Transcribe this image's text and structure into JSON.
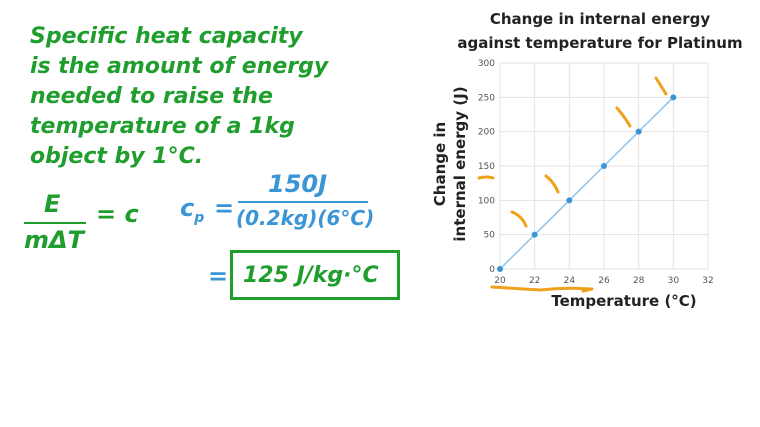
{
  "definition": {
    "lines": [
      "Specific heat capacity",
      "is the amount of energy",
      "needed to raise the",
      "temperature of a 1kg",
      "object by 1°C."
    ]
  },
  "formula": {
    "numerator": "E",
    "denominator": "mΔT",
    "rhs": "= c"
  },
  "calculation": {
    "lhs": "c",
    "lhs_sub": "p",
    "equals": "=",
    "numerator": "150J",
    "denominator": "(0.2kg)(6°C)",
    "result_equals": "=",
    "result": "125 J/kg·°C"
  },
  "colors": {
    "green": "#1f9e2e",
    "blue": "#3a95d6",
    "orange": "#f0a11c",
    "line": "#8fc4ec"
  },
  "chart_data": {
    "type": "line",
    "title": [
      "Change in internal energy",
      "against temperature for Platinum"
    ],
    "xlabel": "Temperature (°C)",
    "ylabel": [
      "Change in",
      "internal energy (J)"
    ],
    "xlim": [
      20,
      32
    ],
    "ylim": [
      0,
      300
    ],
    "xticks": [
      20,
      22,
      24,
      26,
      28,
      30,
      32
    ],
    "yticks": [
      0,
      50,
      100,
      150,
      200,
      250,
      300
    ],
    "grid": true,
    "series": [
      {
        "x": [
          20,
          22,
          24,
          26,
          28,
          30
        ],
        "y": [
          0,
          50,
          100,
          150,
          200,
          250
        ]
      }
    ]
  }
}
